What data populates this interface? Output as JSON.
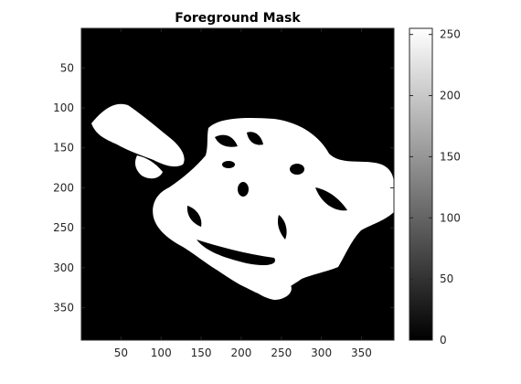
{
  "chart_data": {
    "type": "heatmap",
    "title": "Foreground Mask",
    "xlabel": "",
    "ylabel": "",
    "image_size": [
      390,
      390
    ],
    "xlim": [
      0.5,
      390.5
    ],
    "ylim": [
      0.5,
      390.5
    ],
    "y_direction": "reverse",
    "x_ticks": [
      50,
      100,
      150,
      200,
      250,
      300,
      350
    ],
    "y_ticks": [
      50,
      100,
      150,
      200,
      250,
      300,
      350
    ],
    "colormap": "gray",
    "color_range": [
      0,
      255
    ],
    "colorbar_ticks": [
      0,
      50,
      100,
      150,
      200,
      250
    ],
    "values": [
      0,
      255
    ],
    "description_of_content": "binary mask of a reclining face/head region"
  },
  "colors": {
    "background": "#000000",
    "foreground": "#ffffff",
    "axis": "#262626"
  }
}
